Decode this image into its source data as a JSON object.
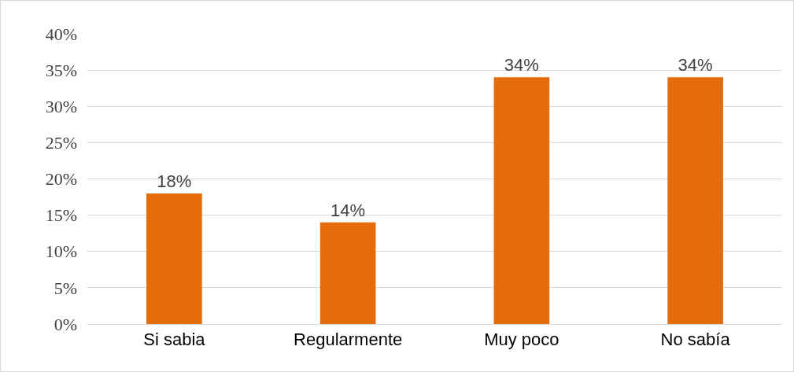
{
  "chart_data": {
    "type": "bar",
    "categories": [
      "Si sabia",
      "Regularmente",
      "Muy poco",
      "No sabía"
    ],
    "values": [
      18,
      14,
      34,
      34
    ],
    "color": "#e46c0a",
    "value_labels": [
      "18%",
      "14%",
      "34%",
      "34%"
    ],
    "ylim": [
      0,
      40
    ],
    "yticks": [
      {
        "value": 0,
        "label": "0%"
      },
      {
        "value": 5,
        "label": "5%"
      },
      {
        "value": 10,
        "label": "10%"
      },
      {
        "value": 15,
        "label": "15%"
      },
      {
        "value": 20,
        "label": "20%"
      },
      {
        "value": 25,
        "label": "25%"
      },
      {
        "value": 30,
        "label": "30%"
      },
      {
        "value": 35,
        "label": "35%"
      },
      {
        "value": 40,
        "label": "40%"
      }
    ],
    "grid": "y"
  }
}
